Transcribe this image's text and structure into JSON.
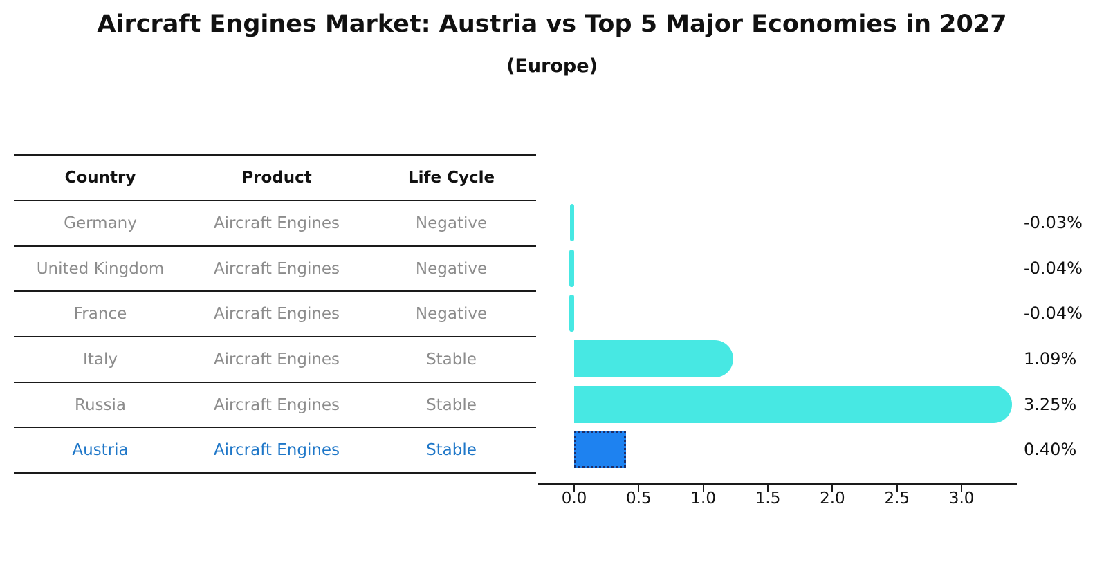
{
  "header": {
    "title": "Aircraft Engines Market: Austria vs Top 5 Major Economies in 2027",
    "subtitle": "(Europe)"
  },
  "table": {
    "columns": [
      "Country",
      "Product",
      "Life Cycle"
    ],
    "rows": [
      {
        "country": "Germany",
        "product": "Aircraft Engines",
        "life_cycle": "Negative",
        "highlight": false
      },
      {
        "country": "United Kingdom",
        "product": "Aircraft Engines",
        "life_cycle": "Negative",
        "highlight": false
      },
      {
        "country": "France",
        "product": "Aircraft Engines",
        "life_cycle": "Negative",
        "highlight": false
      },
      {
        "country": "Italy",
        "product": "Aircraft Engines",
        "life_cycle": "Stable",
        "highlight": false
      },
      {
        "country": "Russia",
        "product": "Aircraft Engines",
        "life_cycle": "Stable",
        "highlight": false
      },
      {
        "country": "Austria",
        "product": "Aircraft Engines",
        "life_cycle": "Stable",
        "highlight": true
      }
    ]
  },
  "chart_data": {
    "type": "bar",
    "orientation": "horizontal",
    "title": "Aircraft Engines Market: Austria vs Top 5 Major Economies in 2027 (Europe)",
    "categories": [
      "Germany",
      "United Kingdom",
      "France",
      "Italy",
      "Russia",
      "Austria"
    ],
    "values": [
      -0.03,
      -0.04,
      -0.04,
      1.09,
      3.25,
      0.4
    ],
    "value_labels": [
      "-0.03%",
      "-0.04%",
      "-0.04%",
      "1.09%",
      "3.25%",
      "0.40%"
    ],
    "x_ticks": [
      "0.0",
      "0.5",
      "1.0",
      "1.5",
      "2.0",
      "2.5",
      "3.0"
    ],
    "x_tick_values": [
      0.0,
      0.5,
      1.0,
      1.5,
      2.0,
      2.5,
      3.0
    ],
    "xlim": [
      -0.28,
      3.43
    ],
    "highlight_index": 5,
    "grid": false,
    "legend": false,
    "colors": {
      "bar_default": "#47e8e3",
      "bar_highlight_fill": "#1e82f0",
      "bar_highlight_border": "#1c2f6b",
      "highlight_text": "#1f77c8",
      "table_text": "#8c8c8c",
      "text": "#111111"
    }
  }
}
